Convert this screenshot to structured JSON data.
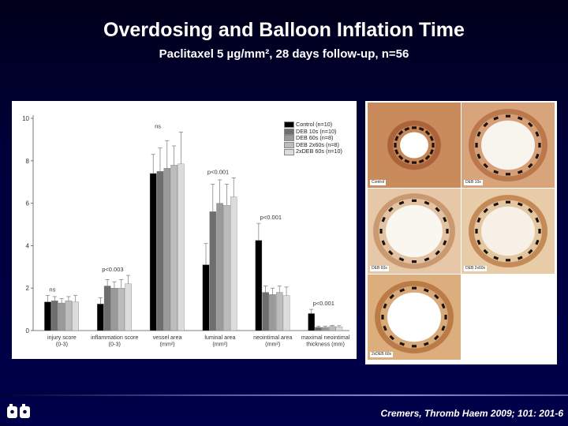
{
  "slide": {
    "title": "Overdosing and Balloon Inflation Time",
    "subtitle": "Paclitaxel 5 µg/mm², 28 days follow-up, n=56",
    "citation": "Cremers, Thromb Haem 2009; 101: 201-6"
  },
  "colors": {
    "background": "#00003a",
    "series": [
      "#000000",
      "#6e6e6e",
      "#9a9a9a",
      "#bcbcbc",
      "#dcdcdc"
    ]
  },
  "photos": {
    "labels": [
      "Control",
      "DEB 10s",
      "DEB 60s",
      "DEB 2x60s",
      "2xDEB 60s"
    ],
    "icon": "histology-cross-section"
  },
  "chart_data": {
    "type": "bar",
    "title": "",
    "xlabel": "",
    "ylabel": "",
    "ylim": [
      0,
      10
    ],
    "yticks": [
      "0",
      "2",
      "4",
      "6",
      "8",
      "10"
    ],
    "grid": false,
    "legend": "top-right",
    "categories": [
      [
        "injury score",
        "(0-3)"
      ],
      [
        "inflammation score",
        "(0-3)"
      ],
      [
        "vessel area",
        "(mm²)"
      ],
      [
        "luminal area",
        "(mm²)"
      ],
      [
        "neointimal area",
        "(mm²)"
      ],
      [
        "maximal neointimal",
        "thickness (mm)"
      ]
    ],
    "annotations": [
      "ns",
      "p<0.003",
      "ns",
      "p<0.001",
      "p<0.001",
      "p<0.001"
    ],
    "series": [
      {
        "name": "Control (n=10)",
        "values": [
          1.35,
          1.25,
          7.4,
          3.1,
          4.25,
          0.8
        ],
        "errors": [
          0.3,
          0.3,
          0.9,
          1.0,
          0.8,
          0.2
        ]
      },
      {
        "name": "DEB 10s (n=10)",
        "values": [
          1.4,
          2.1,
          7.5,
          5.6,
          1.8,
          0.15
        ],
        "errors": [
          0.2,
          0.3,
          1.1,
          1.3,
          0.3,
          0.05
        ]
      },
      {
        "name": "DEB 60s (n=8)",
        "values": [
          1.3,
          2.0,
          7.65,
          6.0,
          1.7,
          0.15
        ],
        "errors": [
          0.2,
          0.3,
          1.3,
          1.1,
          0.3,
          0.05
        ]
      },
      {
        "name": "DEB 2x60s (n=8)",
        "values": [
          1.4,
          2.0,
          7.8,
          5.9,
          1.8,
          0.2
        ],
        "errors": [
          0.2,
          0.4,
          0.9,
          1.0,
          0.3,
          0.05
        ]
      },
      {
        "name": "2xDEB 60s (n=10)",
        "values": [
          1.35,
          2.2,
          7.85,
          6.3,
          1.65,
          0.18
        ],
        "errors": [
          0.3,
          0.4,
          1.5,
          0.9,
          0.4,
          0.05
        ]
      }
    ]
  }
}
